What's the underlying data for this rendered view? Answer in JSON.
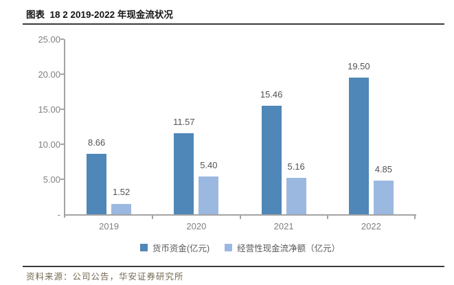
{
  "header": {
    "title": "图表  18 2 2019-2022 年现金流状况"
  },
  "footer": {
    "source_label": "资料来源：公司公告，华安证券研究所"
  },
  "colors": {
    "series1": "#4f87b8",
    "series2": "#9bb8e0",
    "axis": "#a3a3a3",
    "tick_label": "#7f7f7f",
    "data_label": "#525252",
    "legend_text": "#595959",
    "title_text": "#151515",
    "rule": "#3a3a3a",
    "footer_text": "#736952"
  },
  "chart_data": {
    "type": "bar",
    "title": "图表 18 2 2019-2022 年现金流状况",
    "categories": [
      "2019",
      "2020",
      "2021",
      "2022"
    ],
    "series": [
      {
        "name": "货币资金(亿元)",
        "color": "#4f87b8",
        "values": [
          8.66,
          11.57,
          15.46,
          19.5
        ]
      },
      {
        "name": "经营性现金流净额（亿元）",
        "color": "#9bb8e0",
        "values": [
          1.52,
          5.4,
          5.16,
          4.85
        ]
      }
    ],
    "xlabel": "",
    "ylabel": "",
    "ylim": [
      0,
      25
    ],
    "ytick_values": [
      0,
      5,
      10,
      15,
      20,
      25
    ],
    "ytick_labels": [
      "-",
      "5.00",
      "10.00",
      "15.00",
      "20.00",
      "25.00"
    ],
    "grid": false,
    "data_labels": true,
    "label_decimals": 2,
    "legend_position": "bottom"
  }
}
